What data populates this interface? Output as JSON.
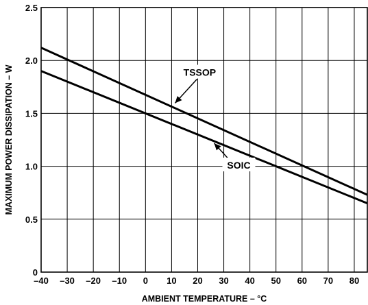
{
  "chart_data": {
    "type": "line",
    "xlabel": "AMBIENT TEMPERATURE – °C",
    "ylabel": "MAXIMUM POWER DISSIPATION – W",
    "xlim": [
      -40,
      85
    ],
    "ylim": [
      0,
      2.5
    ],
    "x_ticks": [
      -40,
      -30,
      -20,
      -10,
      0,
      10,
      20,
      30,
      40,
      50,
      60,
      70,
      80
    ],
    "x_tick_labels": [
      "–40",
      "–30",
      "–20",
      "–10",
      "0",
      "10",
      "20",
      "30",
      "40",
      "50",
      "60",
      "70",
      "80"
    ],
    "y_ticks": [
      0,
      0.5,
      1.0,
      1.5,
      2.0,
      2.5
    ],
    "y_tick_labels": [
      "0",
      "0.5",
      "1.0",
      "1.5",
      "2.0",
      "2.5"
    ],
    "grid": true,
    "series": [
      {
        "name": "TSSOP",
        "x": [
          -40,
          85
        ],
        "y": [
          2.12,
          0.73
        ]
      },
      {
        "name": "SOIC",
        "x": [
          -40,
          85
        ],
        "y": [
          1.9,
          0.65
        ]
      }
    ],
    "annotations": [
      {
        "series": "TSSOP",
        "text": "TSSOP",
        "arrow_to_x": 10,
        "label_above_line": true
      },
      {
        "series": "SOIC",
        "text": "SOIC",
        "arrow_to_x": 25,
        "label_above_line": false
      }
    ]
  },
  "colors": {
    "line": "#000000",
    "grid": "#000000",
    "background": "#ffffff"
  }
}
